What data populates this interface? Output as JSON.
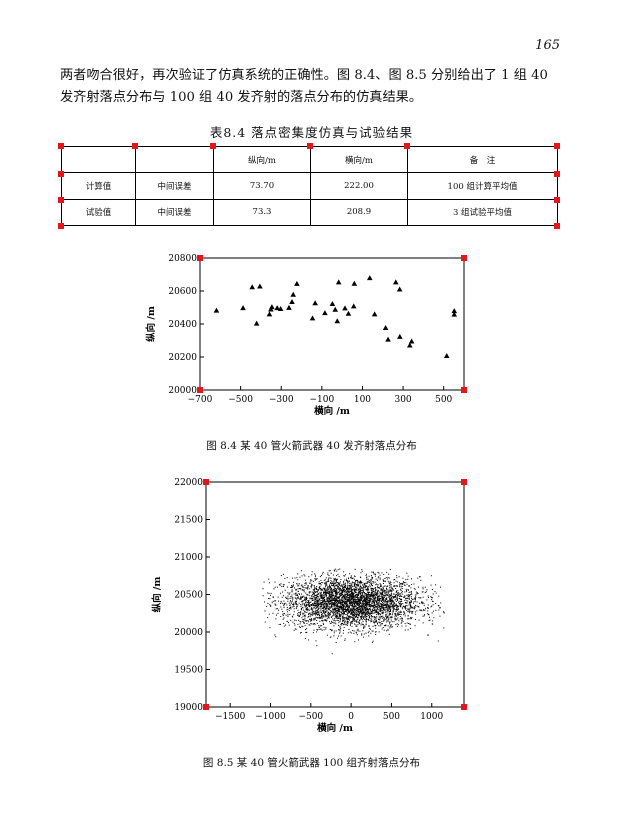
{
  "page_number": "165",
  "paragraph": {
    "line1": "两者吻合很好，再次验证了仿真系统的正确性。图 8.4、图 8.5 分别给出了 1 组 40",
    "line2": "发齐射落点分布与 100 组 40 发齐射的落点分布的仿真结果。"
  },
  "table": {
    "caption": "表8.4   落点密集度仿真与试验结果",
    "headers": [
      "",
      "",
      "纵向/m",
      "横向/m",
      "备　注"
    ],
    "rows": [
      [
        "计算值",
        "中间误差",
        "73.70",
        "222.00",
        "100 组计算平均值"
      ],
      [
        "试验值",
        "中间误差",
        "73.3",
        "208.9",
        "3 组试验平均值"
      ]
    ]
  },
  "figures": [
    {
      "caption": "图 8.4   某 40 管火箭武器 40 发齐射落点分布"
    },
    {
      "caption": "图 8.5   某 40 管火箭武器 100 组齐射落点分布"
    }
  ],
  "chart_data": [
    {
      "type": "scatter",
      "marker": "triangle",
      "xlabel": "横向 /m",
      "ylabel": "纵向 /m",
      "xlim": [
        -700,
        600
      ],
      "ylim": [
        20000,
        20800
      ],
      "xticks": [
        -700,
        -500,
        -300,
        -100,
        100,
        300,
        500
      ],
      "yticks": [
        20000,
        20200,
        20400,
        20600,
        20800
      ],
      "x": [
        -619,
        -488,
        -443,
        -421,
        -405,
        -358,
        -351,
        -346,
        -320,
        -303,
        -262,
        -247,
        -241,
        -223,
        -146,
        -133,
        -85,
        -48,
        -34,
        -24,
        -17,
        14,
        31,
        57,
        60,
        136,
        160,
        214,
        226,
        264,
        283,
        284,
        333,
        342,
        515,
        552,
        552
      ],
      "y": [
        20481,
        20496,
        20623,
        20402,
        20627,
        20458,
        20488,
        20502,
        20496,
        20491,
        20498,
        20533,
        20577,
        20643,
        20434,
        20526,
        20466,
        20521,
        20486,
        20417,
        20652,
        20495,
        20462,
        20507,
        20644,
        20678,
        20458,
        20376,
        20305,
        20652,
        20609,
        20322,
        20270,
        20294,
        20206,
        20457,
        20478
      ]
    },
    {
      "type": "scatter",
      "marker": "dot",
      "xlabel": "横向 /m",
      "ylabel": "纵向 /m",
      "xlim": [
        -1800,
        1400
      ],
      "ylim": [
        19000,
        22000
      ],
      "xticks": [
        -1500,
        -1000,
        -500,
        0,
        500,
        1000
      ],
      "yticks": [
        19000,
        19500,
        20000,
        20500,
        21000,
        21500,
        22000
      ],
      "n_points": 4000,
      "center": [
        0,
        20400
      ],
      "std": [
        420,
        170
      ],
      "x_range": [
        -1100,
        1150
      ],
      "y_range": [
        19600,
        20850
      ]
    }
  ]
}
